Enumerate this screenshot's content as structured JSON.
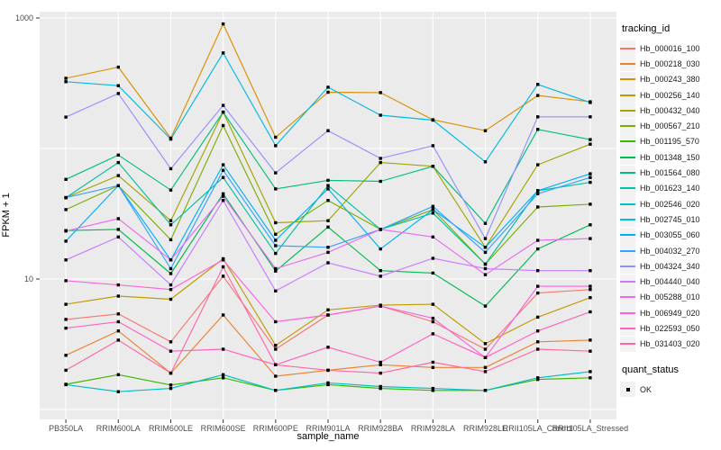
{
  "chart_data": {
    "type": "line",
    "title": "",
    "xlabel": "sample_name",
    "ylabel": "FPKM + 1",
    "legend_position": "right",
    "y_scale": "log10",
    "ylim": [
      0.85,
      1150
    ],
    "y_ticks": [
      {
        "label": "10",
        "value": 10
      },
      {
        "label": "1000",
        "value": 1000
      }
    ],
    "y_gridlines": [
      1,
      10,
      100,
      1000
    ],
    "grid": "white-major-on-gray-panel",
    "point_shape": "filled-black-square",
    "categories": [
      "PB350LA",
      "RRIM600LA",
      "RRIM600LE",
      "RRIM600SE",
      "RRIM600PE",
      "RRIM901LA",
      "RRIM928BA",
      "RRIM928LA",
      "RRIM928LE",
      "RRII105LA_Control",
      "RRII105LA_Stressed"
    ],
    "series": [
      {
        "name": "Hb_000016_100",
        "color": "#F8766D",
        "values": [
          4.9,
          5.4,
          3.3,
          10.5,
          2.9,
          5.3,
          6.2,
          4.7,
          2.9,
          7.8,
          8.3
        ]
      },
      {
        "name": "Hb_000218_030",
        "color": "#EA8331",
        "values": [
          2.6,
          4.0,
          1.9,
          5.3,
          1.8,
          2.0,
          2.2,
          2.1,
          2.1,
          3.3,
          3.4
        ]
      },
      {
        "name": "Hb_000243_380",
        "color": "#D89000",
        "values": [
          345,
          420,
          120,
          900,
          122,
          270,
          268,
          166,
          137,
          255,
          228
        ]
      },
      {
        "name": "Hb_000256_140",
        "color": "#C09B00",
        "values": [
          6.4,
          7.4,
          7.0,
          14.3,
          3.1,
          5.8,
          6.3,
          6.4,
          3.2,
          5.1,
          7.2
        ]
      },
      {
        "name": "Hb_000432_040",
        "color": "#A3A500",
        "values": [
          42,
          62,
          28,
          190,
          27,
          28,
          78,
          73,
          17.5,
          75,
          108
        ]
      },
      {
        "name": "Hb_000567_210",
        "color": "#7CAE00",
        "values": [
          34,
          52,
          20,
          150,
          22,
          40,
          24,
          34,
          13,
          35.6,
          37.4
        ]
      },
      {
        "name": "Hb_001195_570",
        "color": "#39B600",
        "values": [
          1.56,
          1.85,
          1.54,
          1.75,
          1.4,
          1.55,
          1.45,
          1.4,
          1.4,
          1.7,
          1.75
        ]
      },
      {
        "name": "Hb_001348_150",
        "color": "#00BB4E",
        "values": [
          23.5,
          24,
          11,
          45,
          11.5,
          25,
          11.6,
          11.1,
          6.2,
          17,
          26
        ]
      },
      {
        "name": "Hb_001564_080",
        "color": "#00BF7D",
        "values": [
          58,
          89,
          48,
          190,
          49,
          57,
          56,
          73,
          26.7,
          140,
          117
        ]
      },
      {
        "name": "Hb_001623_140",
        "color": "#00C1A3",
        "values": [
          42,
          78,
          26,
          60,
          15.7,
          52,
          24,
          32,
          13,
          47.5,
          55
        ]
      },
      {
        "name": "Hb_002546_020",
        "color": "#00BFC4",
        "values": [
          1.55,
          1.37,
          1.45,
          1.85,
          1.4,
          1.6,
          1.5,
          1.45,
          1.4,
          1.75,
          1.95
        ]
      },
      {
        "name": "Hb_002745_010",
        "color": "#00BAE0",
        "values": [
          325,
          303,
          118,
          540,
          105,
          295,
          180,
          165,
          79,
          310,
          225
        ]
      },
      {
        "name": "Hb_003055_060",
        "color": "#00B0F6",
        "values": [
          19.5,
          52,
          14,
          75,
          19.8,
          49,
          17,
          34,
          17.5,
          47.5,
          64
        ]
      },
      {
        "name": "Hb_004032_270",
        "color": "#35A2FF",
        "values": [
          42,
          52,
          12,
          68,
          18,
          17.5,
          24,
          36,
          16,
          45,
          60
        ]
      },
      {
        "name": "Hb_004324_340",
        "color": "#9590FF",
        "values": [
          174,
          264,
          70,
          214,
          65,
          137,
          84,
          105,
          20.4,
          175,
          175
        ]
      },
      {
        "name": "Hb_004440_040",
        "color": "#C77CFF",
        "values": [
          14,
          21,
          9,
          40,
          8.1,
          13.3,
          10.5,
          14.4,
          12,
          11.6,
          11.6
        ]
      },
      {
        "name": "Hb_005288_010",
        "color": "#E76BF3",
        "values": [
          23.3,
          29,
          14,
          43,
          12,
          16,
          24,
          21,
          10.8,
          19.8,
          20.4
        ]
      },
      {
        "name": "Hb_006949_020",
        "color": "#FA62DB",
        "values": [
          9.7,
          9.0,
          8.3,
          14,
          4.7,
          5.3,
          6.2,
          5.0,
          2.5,
          8.8,
          8.8
        ]
      },
      {
        "name": "Hb_022593_050",
        "color": "#FF61C3",
        "values": [
          4.2,
          4.7,
          2.8,
          2.9,
          2.2,
          3.0,
          2.3,
          3.8,
          2.5,
          4.0,
          5.6
        ]
      },
      {
        "name": "Hb_031403_020",
        "color": "#FF67A4",
        "values": [
          2.0,
          3.4,
          1.9,
          12.4,
          2.2,
          2.0,
          1.9,
          2.3,
          1.95,
          2.9,
          2.8
        ]
      }
    ]
  },
  "legend": {
    "tracking_title": "tracking_id",
    "quant_title": "quant_status",
    "quant_items": [
      {
        "label": "OK",
        "marker": "black-square"
      }
    ]
  },
  "style": {
    "panel_background": "#EBEBEB",
    "gridline_color": "#FFFFFF",
    "tick_label_color": "#4D4D4D",
    "tick_mark_color": "#333333",
    "legend_key_fill": "#F2F2F2"
  }
}
